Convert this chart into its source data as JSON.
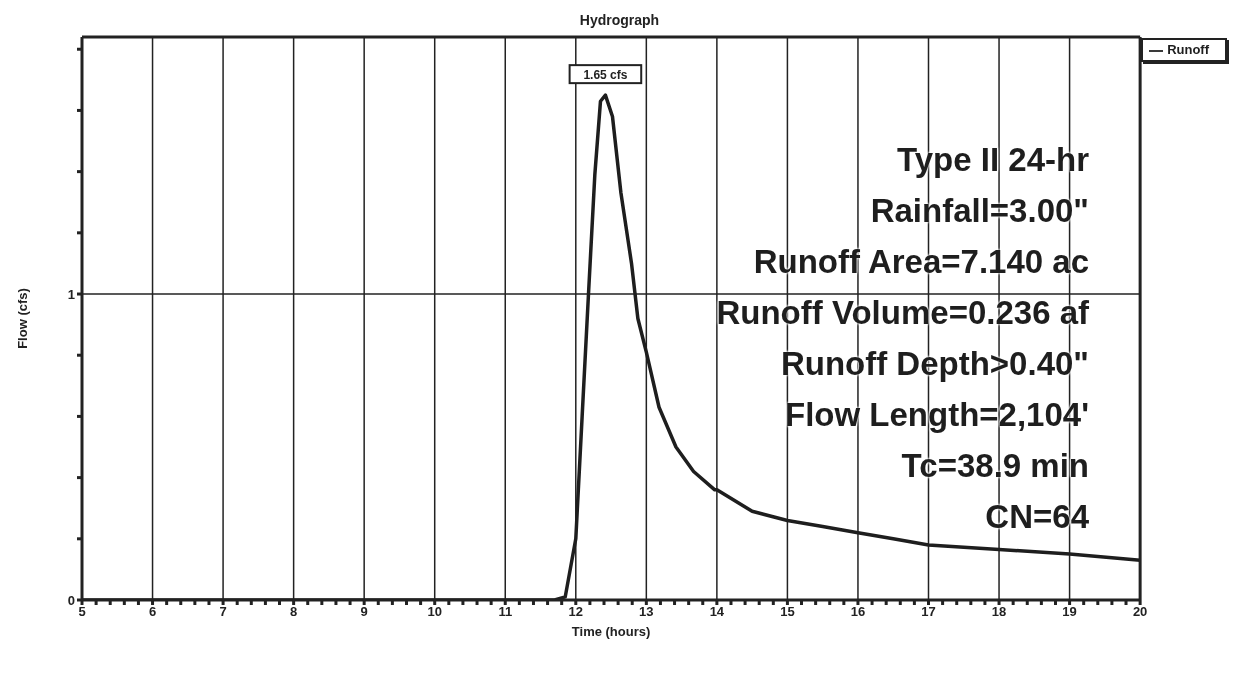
{
  "chart_data": {
    "type": "line",
    "title": "Hydrograph",
    "xlabel": "Time (hours)",
    "ylabel": "Flow (cfs)",
    "x": [
      5,
      11.7,
      11.85,
      12.0,
      12.09,
      12.18,
      12.27,
      12.35,
      12.42,
      12.52,
      12.64,
      12.79,
      12.88,
      13.0,
      13.18,
      13.42,
      13.67,
      13.97,
      14.0,
      14.5,
      15.0,
      15.5,
      16.0,
      16.5,
      17.0,
      18.0,
      19.0,
      20.0
    ],
    "series": [
      {
        "name": "Runoff",
        "color": "#1e1e1e",
        "values": [
          0,
          0,
          0.01,
          0.2,
          0.6,
          1.0,
          1.39,
          1.63,
          1.65,
          1.58,
          1.33,
          1.1,
          0.92,
          0.81,
          0.63,
          0.5,
          0.42,
          0.36,
          0.36,
          0.29,
          0.26,
          0.24,
          0.22,
          0.2,
          0.18,
          0.165,
          0.15,
          0.13
        ]
      }
    ],
    "xlim": [
      5,
      20
    ],
    "xticks": [
      5,
      {
        "value": 5.2,
        "label": null
      },
      {
        "value": 5.4,
        "label": null
      },
      {
        "value": 5.6,
        "label": null
      },
      {
        "value": 5.8,
        "label": null
      },
      6,
      {
        "value": 6.2,
        "label": null
      },
      {
        "value": 6.4,
        "label": null
      },
      {
        "value": 6.6,
        "label": null
      },
      {
        "value": 6.8,
        "label": null
      },
      7,
      {
        "value": 7.2,
        "label": null
      },
      {
        "value": 7.4,
        "label": null
      },
      {
        "value": 7.6,
        "label": null
      },
      {
        "value": 7.8,
        "label": null
      },
      8,
      {
        "value": 8.2,
        "label": null
      },
      {
        "value": 8.4,
        "label": null
      },
      {
        "value": 8.6,
        "label": null
      },
      {
        "value": 8.8,
        "label": null
      },
      9,
      {
        "value": 9.2,
        "label": null
      },
      {
        "value": 9.4,
        "label": null
      },
      {
        "value": 9.6,
        "label": null
      },
      {
        "value": 9.8,
        "label": null
      },
      10,
      {
        "value": 10.2,
        "label": null
      },
      {
        "value": 10.4,
        "label": null
      },
      {
        "value": 10.6,
        "label": null
      },
      {
        "value": 10.8,
        "label": null
      },
      11,
      {
        "value": 11.2,
        "label": null
      },
      {
        "value": 11.4,
        "label": null
      },
      {
        "value": 11.6,
        "label": null
      },
      {
        "value": 11.8,
        "label": null
      },
      12,
      {
        "value": 12.2,
        "label": null
      },
      {
        "value": 12.4,
        "label": null
      },
      {
        "value": 12.6,
        "label": null
      },
      {
        "value": 12.8,
        "label": null
      },
      13,
      {
        "value": 13.2,
        "label": null
      },
      {
        "value": 13.4,
        "label": null
      },
      {
        "value": 13.6,
        "label": null
      },
      {
        "value": 13.8,
        "label": null
      },
      14,
      {
        "value": 14.2,
        "label": null
      },
      {
        "value": 14.4,
        "label": null
      },
      {
        "value": 14.6,
        "label": null
      },
      {
        "value": 14.8,
        "label": null
      },
      15,
      {
        "value": 15.2,
        "label": null
      },
      {
        "value": 15.4,
        "label": null
      },
      {
        "value": 15.6,
        "label": null
      },
      {
        "value": 15.8,
        "label": null
      },
      16,
      {
        "value": 16.2,
        "label": null
      },
      {
        "value": 16.4,
        "label": null
      },
      {
        "value": 16.6,
        "label": null
      },
      {
        "value": 16.8,
        "label": null
      },
      17,
      {
        "value": 17.2,
        "label": null
      },
      {
        "value": 17.4,
        "label": null
      },
      {
        "value": 17.6,
        "label": null
      },
      {
        "value": 17.8,
        "label": null
      },
      18,
      {
        "value": 18.2,
        "label": null
      },
      {
        "value": 18.4,
        "label": null
      },
      {
        "value": 18.6,
        "label": null
      },
      {
        "value": 18.8,
        "label": null
      },
      19,
      {
        "value": 19.2,
        "label": null
      },
      {
        "value": 19.4,
        "label": null
      },
      {
        "value": 19.6,
        "label": null
      },
      {
        "value": 19.8,
        "label": null
      },
      20
    ],
    "ylim": [
      0,
      1.84
    ],
    "yticks": [
      0,
      {
        "value": 0.2,
        "label": null
      },
      {
        "value": 0.4,
        "label": null
      },
      {
        "value": 0.6,
        "label": null
      },
      {
        "value": 0.8,
        "label": null
      },
      1,
      {
        "value": 1.2,
        "label": null
      },
      {
        "value": 1.4,
        "label": null
      },
      {
        "value": 1.6,
        "label": null
      },
      {
        "value": 1.8,
        "label": null
      }
    ],
    "grid": true,
    "legend": "top right",
    "marker": "none",
    "line_style": "solid",
    "annotations": [
      "Type II 24-hr",
      "Rainfall=3.00\"",
      "Runoff Area=7.140 ac",
      "Runoff Volume=0.236 af",
      "Runoff Depth>0.40\"",
      "Flow Length=2,104'",
      "Tc=38.9 min",
      "CN=64",
      {
        "text": "1.65 cfs",
        "x": 12.42,
        "y": 1.65
      }
    ]
  }
}
